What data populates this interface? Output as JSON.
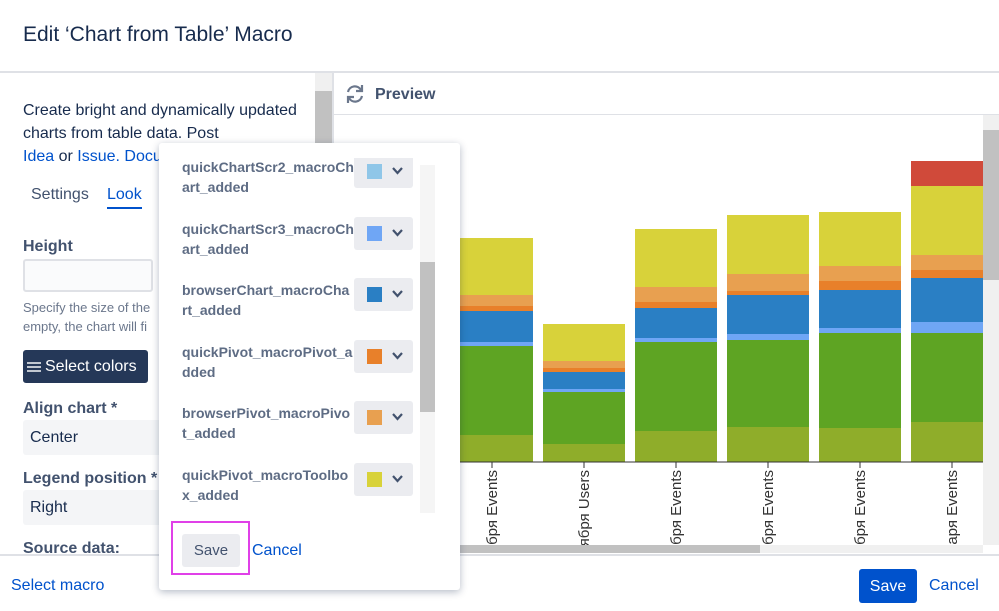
{
  "dialog": {
    "title": "Edit ‘Chart from Table’ Macro"
  },
  "sidebar": {
    "description": "Create bright and dynamically updated charts from table data. Post",
    "link_idea": "Idea",
    "or": "or",
    "link_issue": "Issue.",
    "link_docs": "Docu",
    "tabs": [
      "Settings",
      "Look"
    ],
    "height_label": "Height",
    "height_help": [
      "Specify the size of the",
      "empty, the chart will fi"
    ],
    "select_colors": "Select colors",
    "align_label": "Align chart *",
    "align_value": "Center",
    "legend_label": "Legend position *",
    "legend_value": "Right",
    "source_label": "Source data:"
  },
  "preview": {
    "title": "Preview"
  },
  "chart_data": {
    "type": "bar",
    "stacked": true,
    "categories": [
      "бря Events",
      "ября Users",
      "бря Events",
      "бря Events",
      "бря Events",
      "аря Events"
    ],
    "series": [
      {
        "color": "#8fad2a",
        "values": [
          27,
          18,
          31,
          35,
          34,
          40
        ]
      },
      {
        "color": "#5ea423",
        "values": [
          89,
          52,
          89,
          87,
          95,
          89
        ]
      },
      {
        "color": "#6fa6f5",
        "values": [
          4,
          3,
          4,
          6,
          5,
          11
        ]
      },
      {
        "color": "#2a7fc4",
        "values": [
          31,
          17,
          30,
          39,
          38,
          44
        ]
      },
      {
        "color": "#e8802a",
        "values": [
          5,
          4,
          6,
          4,
          9,
          8
        ]
      },
      {
        "color": "#e8a050",
        "values": [
          11,
          7,
          15,
          17,
          15,
          15
        ]
      },
      {
        "color": "#d8d23a",
        "values": [
          57,
          37,
          58,
          59,
          54,
          69
        ]
      },
      {
        "color": "#d04a3a",
        "values": [
          0,
          0,
          0,
          0,
          0,
          25
        ]
      }
    ]
  },
  "color_popup": {
    "items": [
      {
        "label": "quickChartScr2_macroChart_added",
        "color": "#8fc6e8"
      },
      {
        "label": "quickChartScr3_macroChart_added",
        "color": "#6fa6f5"
      },
      {
        "label": "browserChart_macroChart_added",
        "color": "#2a7fc4"
      },
      {
        "label": "quickPivot_macroPivot_added",
        "color": "#e8802a"
      },
      {
        "label": "browserPivot_macroPivot_added",
        "color": "#e8a050"
      },
      {
        "label": "quickPivot_macroToolbox_added",
        "color": "#d8d23a"
      }
    ],
    "save": "Save",
    "cancel": "Cancel"
  },
  "footer": {
    "select_macro": "Select macro",
    "save": "Save",
    "cancel": "Cancel"
  }
}
